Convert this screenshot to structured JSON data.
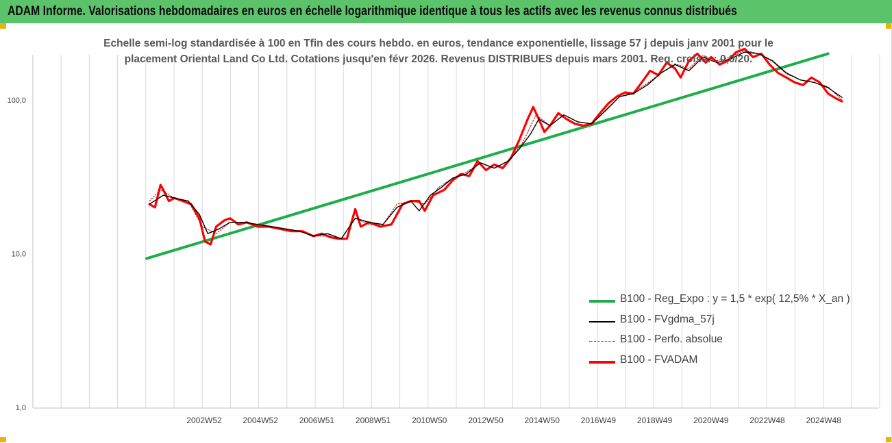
{
  "header": {
    "title": "ADAM Informe. Valorisations hebdomadaires en euros en échelle logarithmique identique à tous les actifs avec les revenus connus distribués"
  },
  "colors": {
    "banner": "#5bc46b",
    "regression": "#1fad4b",
    "fvgdma": "#000000",
    "perfo": "#c00000",
    "fvadam": "#ff0000",
    "gridline": "#d9d9d9"
  },
  "chart_data": {
    "type": "line",
    "title": "Echelle semi-log standardisée à 100 en Tfin des cours hebdo. en euros, tendance exponentielle, lissage 57 j depuis janv 2001 pour le",
    "subtitle": "placement Oriental Land Co Ltd. Cotations jusqu'en févr 2026. Revenus DISTRIBUES depuis mars 2001.  Reg. croiss. : 0,0/20.",
    "y_scale": "log",
    "ylim": [
      1,
      200
    ],
    "y_ticks": [
      "1,0",
      "10,0",
      "100,0"
    ],
    "x_tick_labels": [
      "2002W52",
      "2004W52",
      "2006W51",
      "2008W51",
      "2010W50",
      "2012W50",
      "2014W50",
      "2016W49",
      "2018W49",
      "2020W49",
      "2022W48",
      "2024W48"
    ],
    "x_range": [
      2001.0,
      2026.15
    ],
    "grid": "vertical",
    "legend_position": "bottom-right",
    "series": [
      {
        "name": "B100 - Reg_Expo : y = 1,5 * exp( 12,5% *  X_an )",
        "key": "reg",
        "x": [
          2001.0,
          2025.5
        ],
        "y": [
          9.3,
          200
        ]
      },
      {
        "name": "B100 - FVgdma_57j",
        "key": "fvgdma",
        "x": [
          2001.1,
          2001.6,
          2002.0,
          2002.5,
          2002.9,
          2003.2,
          2003.6,
          2004.0,
          2004.5,
          2005.0,
          2005.5,
          2006.0,
          2006.5,
          2007.0,
          2007.5,
          2008.0,
          2008.5,
          2009.0,
          2009.5,
          2010.0,
          2010.5,
          2010.8,
          2011.2,
          2011.6,
          2012.0,
          2012.5,
          2013.0,
          2013.5,
          2014.0,
          2014.4,
          2014.8,
          2015.1,
          2015.5,
          2016.0,
          2016.5,
          2017.0,
          2017.5,
          2018.0,
          2018.5,
          2019.0,
          2019.5,
          2020.0,
          2020.5,
          2021.0,
          2021.5,
          2022.0,
          2022.5,
          2023.0,
          2023.5,
          2024.0,
          2024.5,
          2025.0,
          2025.5,
          2026.0
        ],
        "y": [
          21,
          24,
          23,
          22,
          18,
          13.5,
          14.5,
          16,
          16,
          15.5,
          15,
          14.5,
          14,
          13,
          13.5,
          12.5,
          17,
          16,
          15.5,
          20,
          22,
          19,
          24,
          27,
          31,
          33,
          39,
          36,
          40,
          48,
          60,
          75,
          68,
          80,
          72,
          70,
          85,
          105,
          110,
          125,
          150,
          170,
          155,
          190,
          175,
          185,
          205,
          200,
          180,
          150,
          135,
          130,
          120,
          104
        ]
      },
      {
        "name": "B100 - Perfo. absolue",
        "key": "perfo",
        "x": [
          2001.1,
          2001.5,
          2002.0,
          2002.5,
          2003.0,
          2003.5,
          2004.0,
          2004.5,
          2005.0,
          2005.5,
          2006.0,
          2006.5,
          2007.0,
          2007.5,
          2008.0,
          2008.5,
          2009.0,
          2009.5,
          2010.0,
          2010.5,
          2011.0,
          2011.5,
          2012.0,
          2012.5,
          2013.0,
          2013.5,
          2014.0,
          2014.5,
          2015.0,
          2015.5,
          2016.0,
          2016.5,
          2017.0,
          2017.5,
          2018.0,
          2018.5,
          2019.0,
          2019.5,
          2020.0,
          2020.5,
          2021.0,
          2021.5,
          2022.0,
          2022.5,
          2023.0,
          2023.5,
          2024.0,
          2024.5,
          2025.0,
          2025.5,
          2026.0
        ],
        "y": [
          22,
          26,
          23,
          22,
          15,
          13.5,
          16,
          16,
          15.5,
          15,
          14.5,
          14,
          13,
          13,
          12.5,
          17,
          15.5,
          15.5,
          21,
          22,
          21,
          27,
          31,
          34,
          39,
          36,
          40,
          52,
          80,
          68,
          80,
          72,
          70,
          86,
          105,
          112,
          128,
          150,
          172,
          160,
          195,
          180,
          190,
          210,
          200,
          178,
          148,
          135,
          130,
          122,
          100
        ]
      },
      {
        "name": "B100 - FVADAM",
        "key": "fvadam",
        "x": [
          2001.1,
          2001.3,
          2001.5,
          2001.6,
          2001.8,
          2002.0,
          2002.3,
          2002.6,
          2002.9,
          2003.1,
          2003.3,
          2003.5,
          2003.8,
          2004.0,
          2004.3,
          2004.6,
          2005.0,
          2005.4,
          2005.8,
          2006.2,
          2006.6,
          2007.0,
          2007.3,
          2007.6,
          2007.9,
          2008.2,
          2008.5,
          2008.7,
          2009.0,
          2009.4,
          2009.8,
          2010.2,
          2010.5,
          2010.8,
          2011.0,
          2011.3,
          2011.7,
          2012.0,
          2012.3,
          2012.6,
          2012.9,
          2013.2,
          2013.5,
          2013.8,
          2014.1,
          2014.4,
          2014.7,
          2014.9,
          2015.1,
          2015.3,
          2015.5,
          2015.8,
          2016.1,
          2016.4,
          2016.7,
          2017.0,
          2017.3,
          2017.6,
          2017.9,
          2018.2,
          2018.5,
          2018.8,
          2019.1,
          2019.4,
          2019.7,
          2020.0,
          2020.2,
          2020.5,
          2020.8,
          2021.1,
          2021.3,
          2021.6,
          2021.9,
          2022.2,
          2022.5,
          2022.8,
          2023.1,
          2023.4,
          2023.7,
          2024.0,
          2024.3,
          2024.6,
          2024.9,
          2025.2,
          2025.5,
          2025.8,
          2026.0
        ],
        "y": [
          21,
          20,
          28,
          26,
          22,
          23,
          22,
          21,
          17,
          12,
          11.5,
          15,
          16.5,
          17,
          15.5,
          16,
          15,
          15,
          14.5,
          14,
          14,
          13,
          13.5,
          12.8,
          12.5,
          12.5,
          19.5,
          15,
          16,
          15,
          15.5,
          21,
          22,
          22,
          19,
          24,
          26,
          30,
          33,
          32,
          40,
          35,
          38,
          36,
          42,
          55,
          75,
          90,
          75,
          62,
          68,
          82,
          75,
          70,
          68,
          70,
          82,
          95,
          105,
          112,
          110,
          130,
          155,
          145,
          175,
          160,
          140,
          180,
          200,
          175,
          190,
          170,
          180,
          205,
          215,
          190,
          200,
          170,
          150,
          140,
          130,
          125,
          140,
          130,
          110,
          102,
          98
        ]
      }
    ]
  }
}
